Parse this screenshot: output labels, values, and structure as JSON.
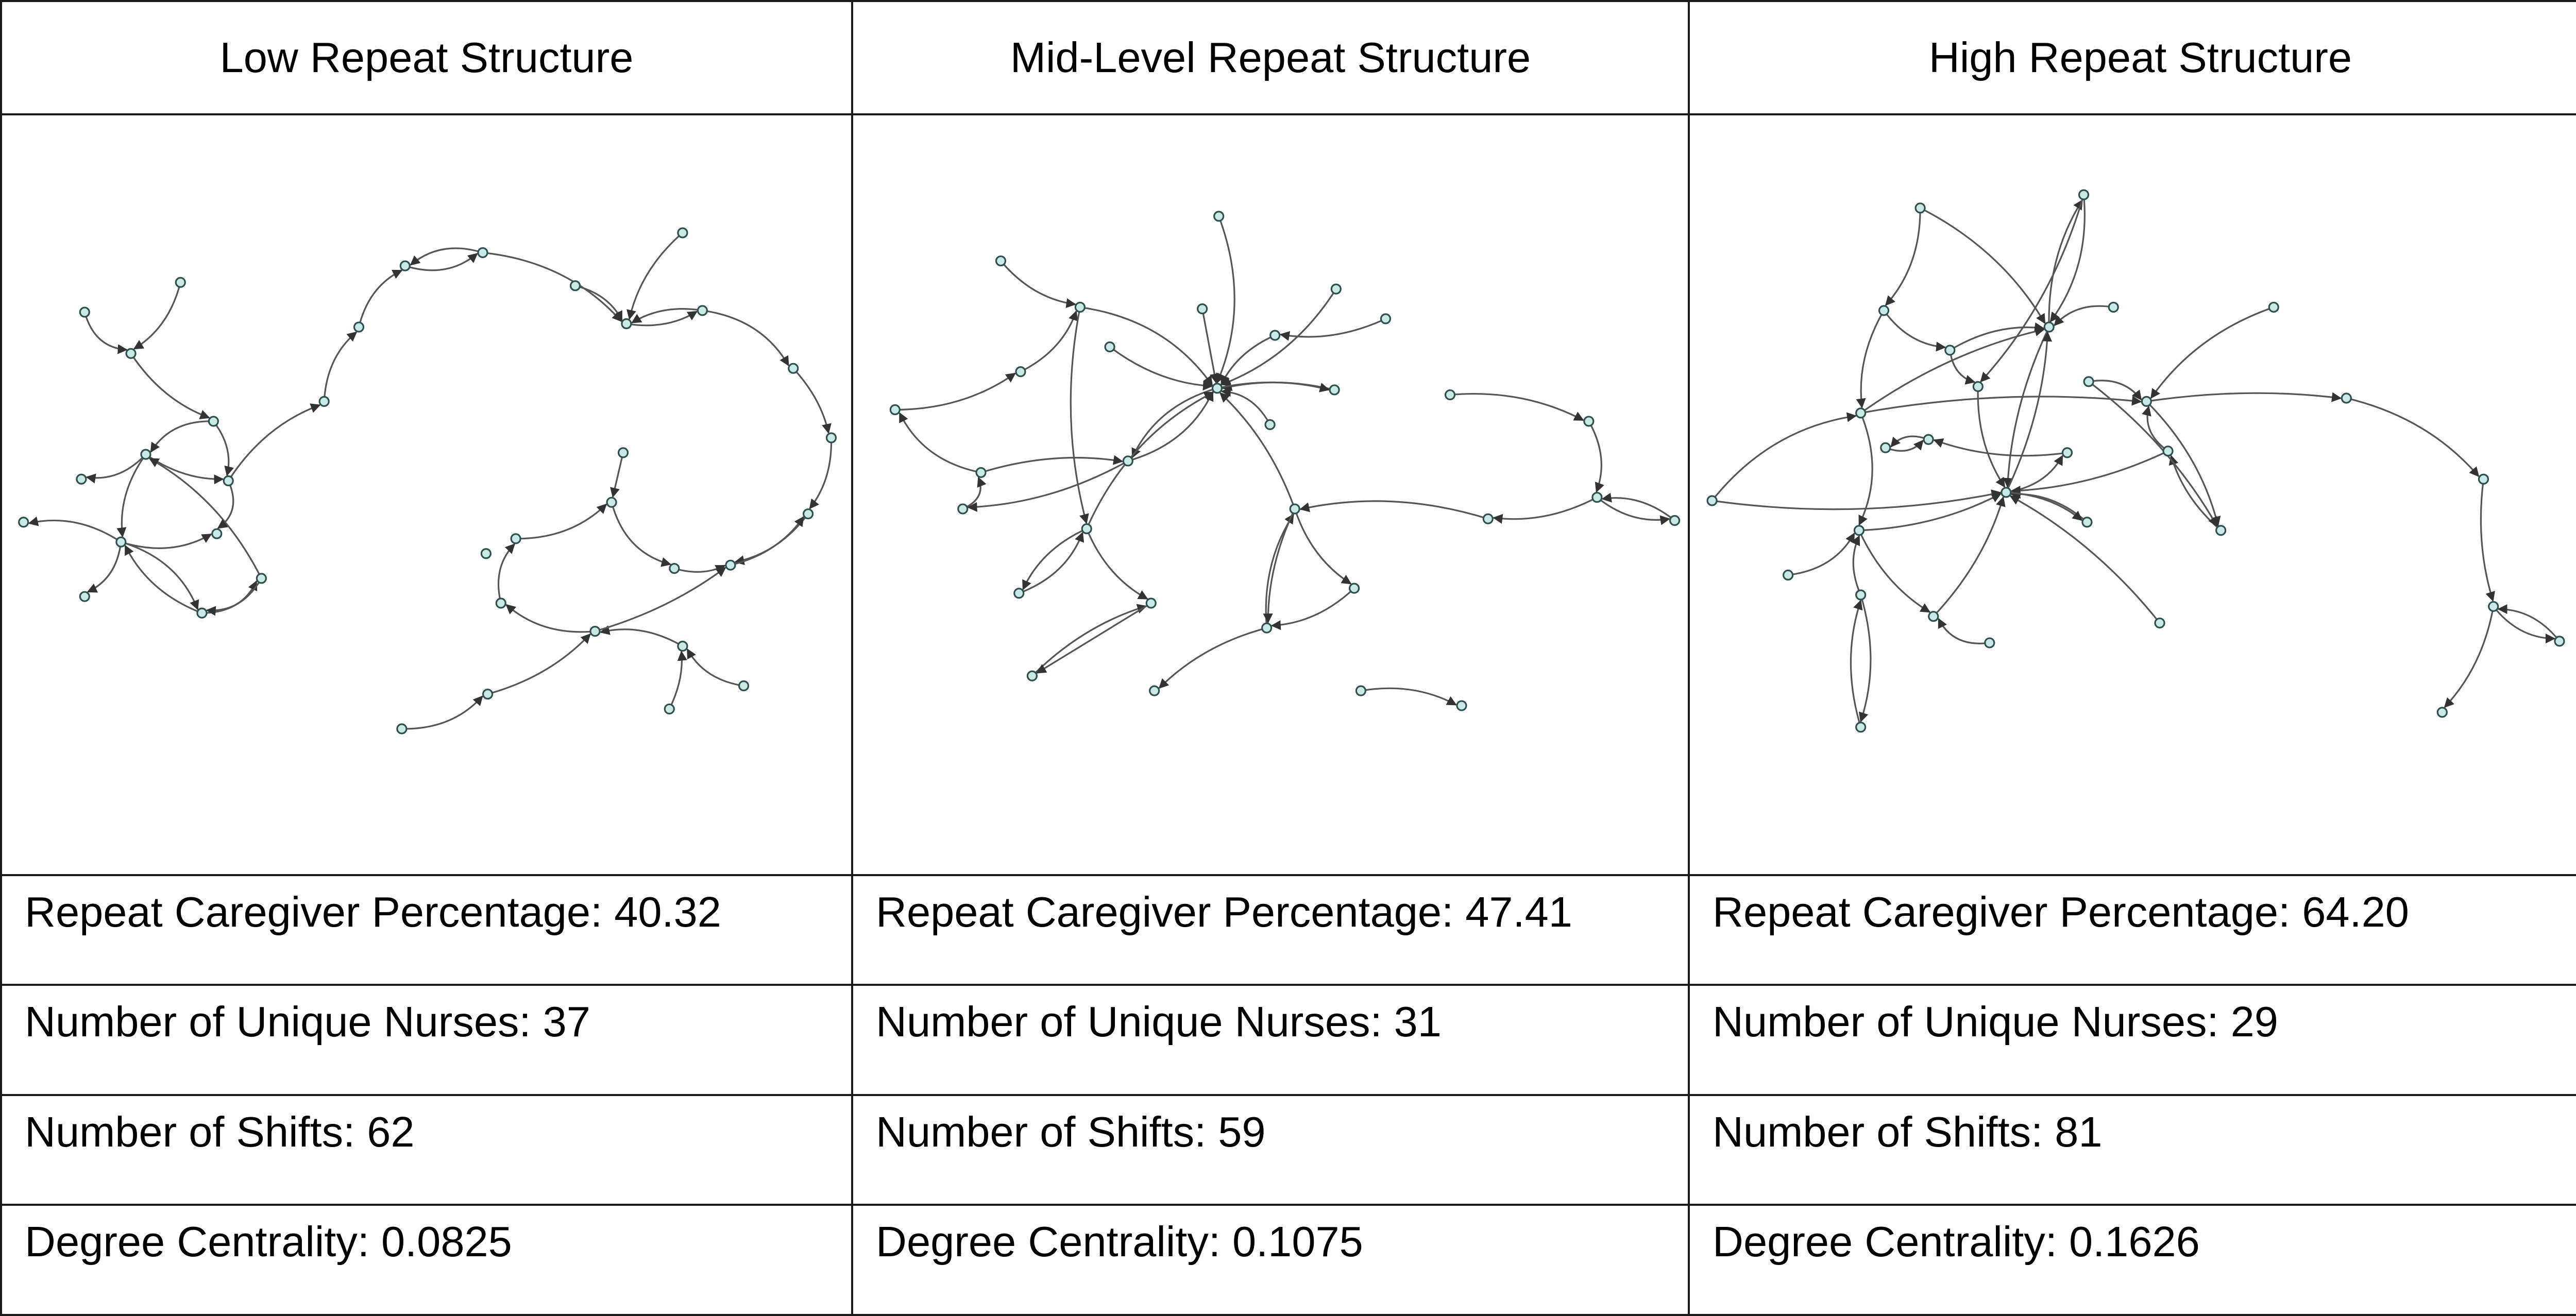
{
  "panels": [
    {
      "title": "Low Repeat Structure",
      "repeat_caregiver_percentage": "Repeat Caregiver Percentage: 40.32",
      "unique_nurses": "Number of Unique Nurses: 37",
      "shifts": "Number of Shifts: 62",
      "degree_centrality": "Degree Centrality: 0.0825"
    },
    {
      "title": "Mid-Level Repeat Structure",
      "repeat_caregiver_percentage": "Repeat Caregiver Percentage: 47.41",
      "unique_nurses": "Number of Unique Nurses: 31",
      "shifts": "Number of Shifts: 59",
      "degree_centrality": "Degree Centrality: 0.1075"
    },
    {
      "title": "High Repeat Structure",
      "repeat_caregiver_percentage": "Repeat Caregiver Percentage: 64.20",
      "unique_nurses": "Number of Unique Nurses: 29",
      "shifts": "Number of Shifts: 81",
      "degree_centrality": "Degree Centrality: 0.1626"
    }
  ],
  "colors": {
    "node_fill": "#c9e9e6",
    "node_stroke": "#2f4f4f",
    "edge": "#555555",
    "border": "#1a1a1a"
  }
}
